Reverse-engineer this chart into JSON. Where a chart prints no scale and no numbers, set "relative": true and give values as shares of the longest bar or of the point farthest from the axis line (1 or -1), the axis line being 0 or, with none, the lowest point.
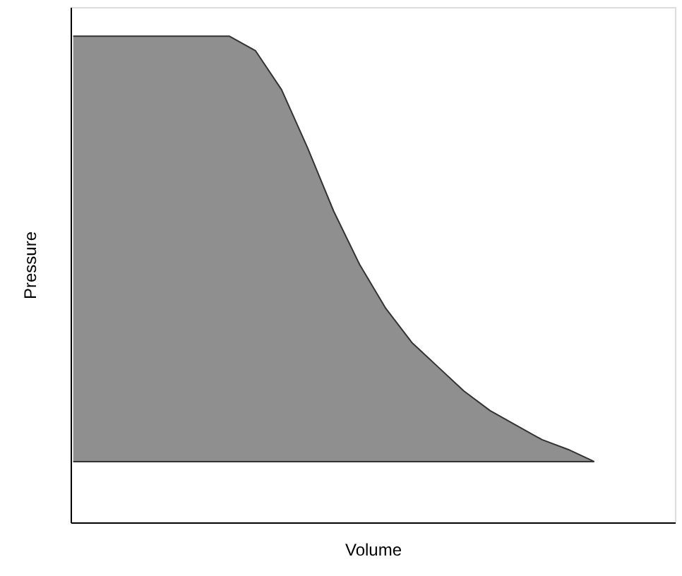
{
  "chart_data": {
    "type": "area",
    "relative": true,
    "xlabel": "Volume",
    "ylabel": "Pressure",
    "categories": [
      null,
      null,
      null,
      null,
      null,
      null,
      null,
      null,
      null,
      null,
      null,
      null,
      null,
      null,
      null,
      null,
      null,
      null,
      null,
      null,
      null,
      null,
      null,
      null
    ],
    "series": [
      {
        "color": "#8f8f8f",
        "values": [
          1,
          1,
          1,
          1,
          1,
          1,
          1,
          0.97,
          0.89,
          0.77,
          0.64,
          0.53,
          0.44,
          0.37,
          0.32,
          0.27,
          0.23,
          0.2,
          0.17,
          0.15,
          0.125,
          null,
          null,
          null
        ]
      }
    ],
    "ref_lines": [
      {
        "axis": "y",
        "value": 0.125,
        "color": "#333333"
      }
    ],
    "grid": false
  }
}
